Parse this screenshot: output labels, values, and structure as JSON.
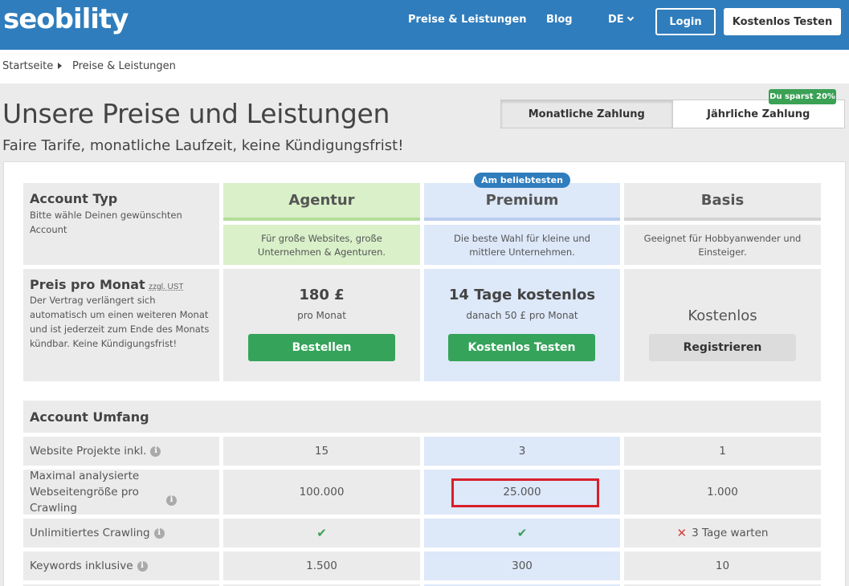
{
  "header": {
    "logo": "seobility",
    "nav": {
      "pricing": "Preise & Leistungen",
      "blog": "Blog",
      "lang": "DE"
    },
    "login": "Login",
    "trial": "Kostenlos Testen"
  },
  "breadcrumb": {
    "home": "Startseite",
    "current": "Preise & Leistungen"
  },
  "page": {
    "title": "Unsere Preise und Leistungen",
    "subtitle": "Faire Tarife, monatliche Laufzeit, keine Kündigungsfrist!"
  },
  "billing": {
    "monthly": "Monatliche Zahlung",
    "yearly": "Jährliche Zahlung",
    "save_badge": "Du sparst 20%"
  },
  "table": {
    "popular_badge": "Am beliebtesten",
    "account_type": {
      "title": "Account Typ",
      "text": "Bitte wähle Deinen gewünschten Account"
    },
    "plans": {
      "agentur": {
        "name": "Agentur",
        "desc": "Für große Websites, große Unternehmen & Agenturen.",
        "price": "180 £",
        "price_sub": "pro Monat",
        "cta": "Bestellen"
      },
      "premium": {
        "name": "Premium",
        "desc": "Die beste Wahl für kleine und mittlere Unternehmen.",
        "price": "14 Tage kostenlos",
        "price_sub": "danach 50 £ pro Monat",
        "cta": "Kostenlos Testen"
      },
      "basis": {
        "name": "Basis",
        "desc": "Geeignet für Hobbyanwender und Einsteiger.",
        "price": "Kostenlos",
        "cta": "Registrieren"
      }
    },
    "price_label": {
      "title": "Preis pro Monat",
      "note": "zzgl. UST",
      "text": "Der Vertrag verlängert sich automatisch um einen weiteren Monat und ist jederzeit zum Ende des Monats kündbar. Keine Kündigungsfrist!"
    },
    "section_title": "Account Umfang",
    "rows": [
      {
        "label": "Website Projekte inkl.",
        "agentur": "15",
        "premium": "3",
        "basis": "1"
      },
      {
        "label": "Maximal analysierte Webseitengröße pro Crawling",
        "agentur": "100.000",
        "premium": "25.000",
        "basis": "1.000"
      },
      {
        "label": "Unlimitiertes Crawling",
        "agentur": "✔",
        "premium": "✔",
        "basis": "3 Tage warten",
        "basis_icon": "✕"
      },
      {
        "label": "Keywords inklusive",
        "agentur": "1.500",
        "premium": "300",
        "basis": "10"
      }
    ],
    "info_icon": "i"
  }
}
